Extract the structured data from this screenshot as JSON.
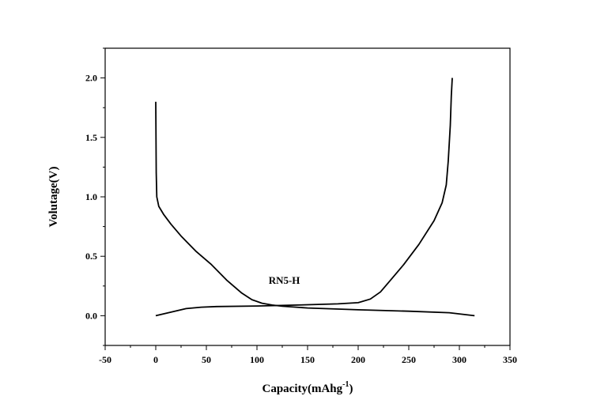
{
  "chart_data": {
    "type": "line",
    "xlabel": "Capacity(mAhg",
    "xlabel_sup": "-1",
    "xlabel_close": ")",
    "ylabel": "Volutage(V)",
    "xlim": [
      -50,
      350
    ],
    "ylim": [
      -0.25,
      2.25
    ],
    "xticks": [
      -50,
      0,
      50,
      100,
      150,
      200,
      250,
      300,
      350
    ],
    "xtick_labels": [
      "-50",
      "0",
      "50",
      "100",
      "150",
      "200",
      "250",
      "300",
      "350"
    ],
    "yticks": [
      0.0,
      0.5,
      1.0,
      1.5,
      2.0
    ],
    "ytick_labels": [
      "0.0",
      "0.5",
      "1.0",
      "1.5",
      "2.0"
    ],
    "grid": false,
    "annotation": {
      "text": "RN5-H",
      "x": 127,
      "y": 0.27
    },
    "series": [
      {
        "points": [
          [
            0,
            1.8
          ],
          [
            0.5,
            1.2
          ],
          [
            1,
            1.0
          ],
          [
            3,
            0.92
          ],
          [
            8,
            0.85
          ],
          [
            15,
            0.77
          ],
          [
            25,
            0.67
          ],
          [
            40,
            0.54
          ],
          [
            55,
            0.43
          ],
          [
            70,
            0.3
          ],
          [
            85,
            0.19
          ],
          [
            95,
            0.135
          ],
          [
            105,
            0.105
          ],
          [
            115,
            0.09
          ],
          [
            125,
            0.08
          ],
          [
            150,
            0.065
          ],
          [
            200,
            0.05
          ],
          [
            250,
            0.038
          ],
          [
            290,
            0.025
          ],
          [
            315,
            0.0
          ]
        ]
      },
      {
        "points": [
          [
            0,
            0.0
          ],
          [
            15,
            0.03
          ],
          [
            30,
            0.06
          ],
          [
            45,
            0.072
          ],
          [
            60,
            0.077
          ],
          [
            100,
            0.082
          ],
          [
            140,
            0.09
          ],
          [
            180,
            0.1
          ],
          [
            200,
            0.11
          ],
          [
            212,
            0.14
          ],
          [
            222,
            0.2
          ],
          [
            232,
            0.3
          ],
          [
            245,
            0.43
          ],
          [
            260,
            0.6
          ],
          [
            275,
            0.8
          ],
          [
            283,
            0.95
          ],
          [
            287,
            1.1
          ],
          [
            289,
            1.3
          ],
          [
            291,
            1.6
          ],
          [
            292,
            1.85
          ],
          [
            293,
            2.0
          ]
        ]
      }
    ]
  }
}
